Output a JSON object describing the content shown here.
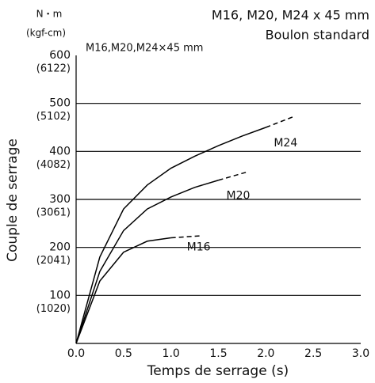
{
  "chart_data": {
    "type": "line",
    "title": "M16, M20, M24 x 45 mm",
    "subtitle": "Boulon standard",
    "annotation": "M16,M20,M24×45 mm",
    "y_unit": "N・m",
    "y_unit_secondary": "(kgf-cm)",
    "xlabel": "Temps de serrage (s)",
    "ylabel": "Couple de serrage",
    "xlim": [
      0,
      3
    ],
    "ylim": [
      0,
      600
    ],
    "xticks": [
      {
        "value": 0,
        "label": "0.0"
      },
      0.5,
      {
        "value": 1,
        "label": "1.0"
      },
      1.5,
      {
        "value": 2,
        "label": "2.0"
      },
      2.5,
      {
        "value": 3,
        "label": "3.0"
      }
    ],
    "yticks": [
      100,
      200,
      300,
      400,
      500,
      600
    ],
    "ytick_secondary_labels": [
      "(1020)",
      "(2041)",
      "(3061)",
      "(4082)",
      "(5102)",
      "(6122)"
    ],
    "grid": true,
    "series": [
      {
        "name": "M24",
        "color": "#000000",
        "x": [
          0,
          0.25,
          0.5,
          0.75,
          1.0,
          1.25,
          1.5,
          1.75,
          2.0
        ],
        "values": [
          0,
          180,
          280,
          330,
          365,
          390,
          412,
          432,
          450
        ],
        "extension": {
          "x": [
            2.3
          ],
          "values": [
            473
          ]
        }
      },
      {
        "name": "M20",
        "color": "#000000",
        "x": [
          0,
          0.25,
          0.5,
          0.75,
          1.0,
          1.25,
          1.5
        ],
        "values": [
          0,
          150,
          235,
          280,
          305,
          325,
          340
        ],
        "extension": {
          "x": [
            1.8
          ],
          "values": [
            357
          ]
        }
      },
      {
        "name": "M16",
        "color": "#000000",
        "x": [
          0,
          0.25,
          0.5,
          0.75,
          1.0
        ],
        "values": [
          0,
          130,
          190,
          213,
          220
        ],
        "extension": {
          "x": [
            1.3
          ],
          "values": [
            224
          ]
        }
      }
    ]
  }
}
